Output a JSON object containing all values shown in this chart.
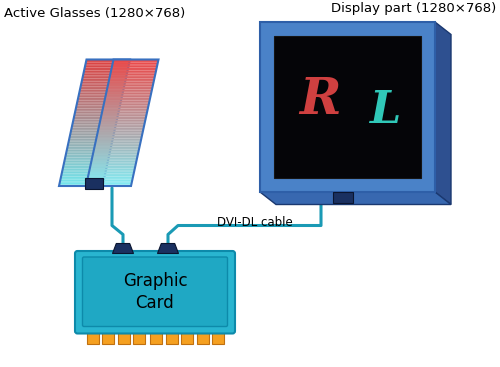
{
  "bg_color": "#ffffff",
  "glasses_label": "Active Glasses (1280×768)",
  "display_label": "Display part (1280×768)",
  "cable_label": "DVI-DL cable",
  "card_label": "Graphic\nCard",
  "teal_color": "#29b5d0",
  "teal_inner": "#1fa8c4",
  "teal_border": "#0d8aaa",
  "blue_frame": "#4a82c8",
  "blue_frame_dark": "#2e5fa8",
  "blue_frame_side": "#3060a8",
  "blue_frame_top": "#5890d8",
  "orange_color": "#f5a020",
  "orange_border": "#c07010",
  "dark_navy": "#1a3060",
  "connector_color": "#1a3060",
  "cable_color": "#1a9ab5",
  "screen_color": "#050508",
  "R_color": "#d85050",
  "L_color": "#40d8c8",
  "label_fontsize": 9.5,
  "card_fontsize": 12,
  "RL_fontsize_R": 36,
  "RL_fontsize_L": 32
}
